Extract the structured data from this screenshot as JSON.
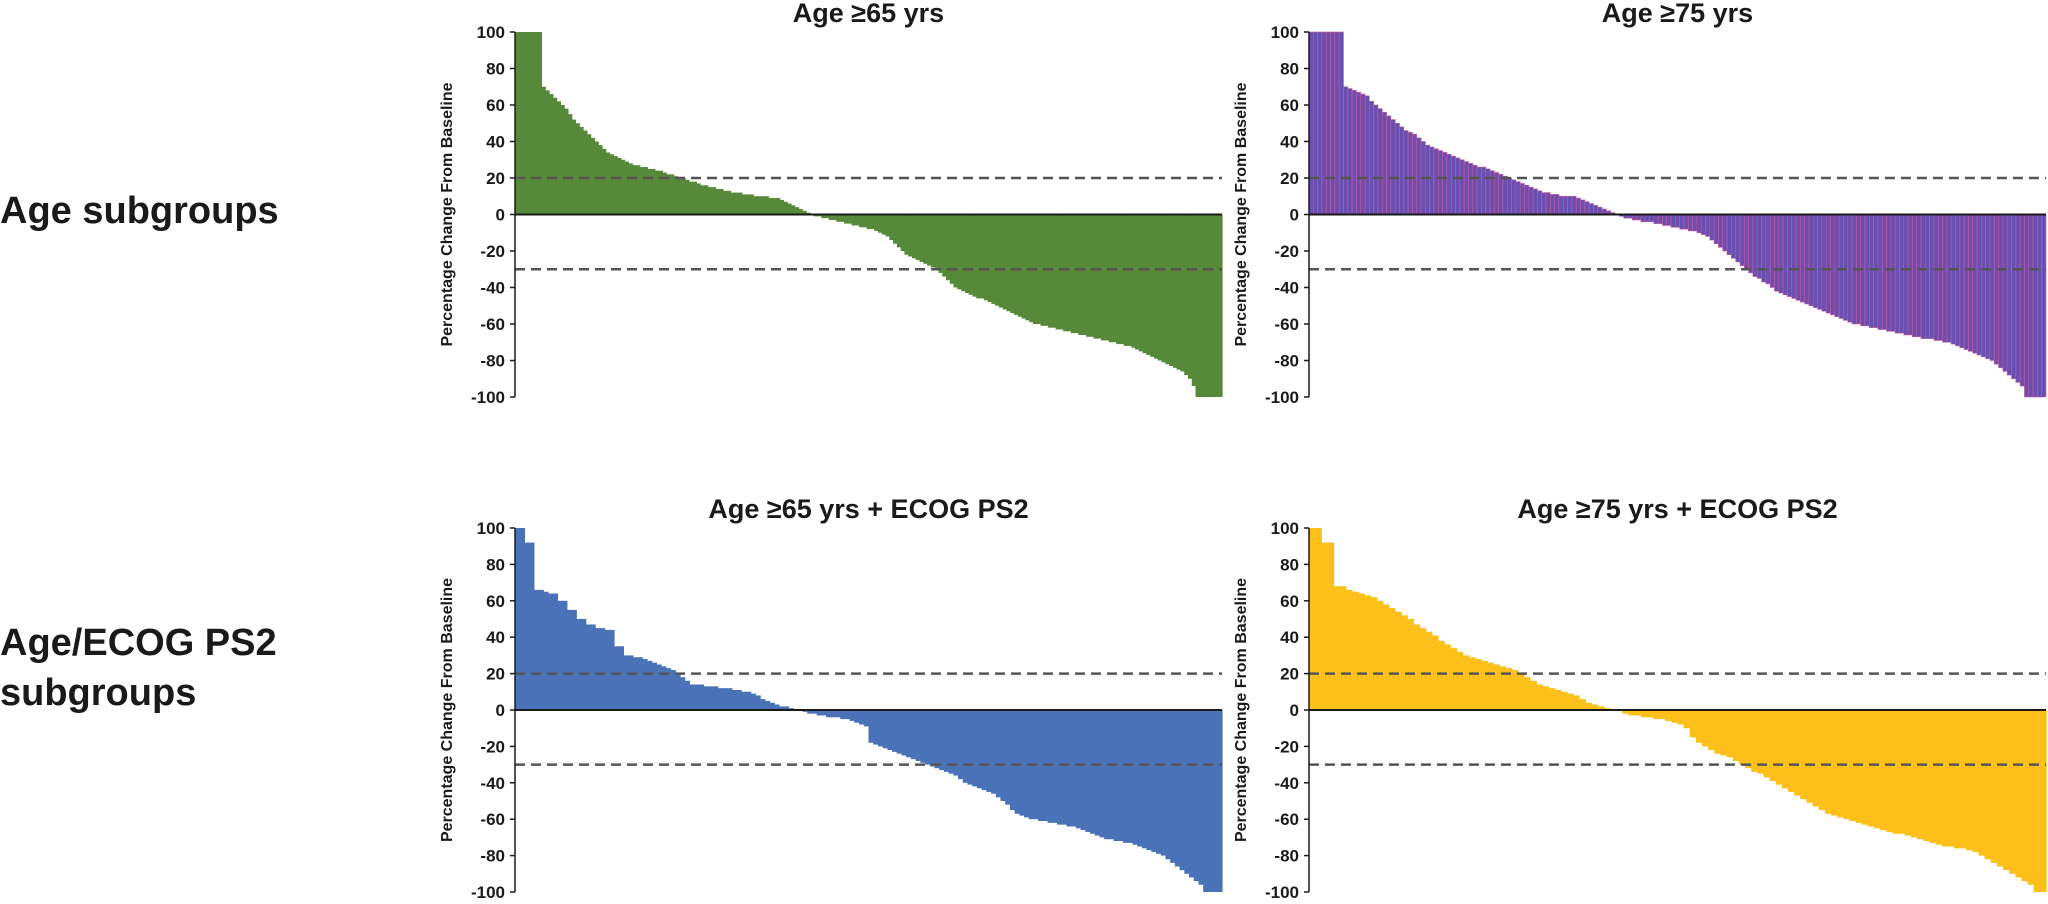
{
  "row_labels": [
    "Age subgroups",
    "Age/ECOG PS2\nsubgroups"
  ],
  "chart_data": [
    {
      "type": "bar",
      "style": "waterfall",
      "title": "Age ≥65 yrs",
      "ylabel": "Percentage Change From Baseline",
      "ylim": [
        -100,
        100
      ],
      "yticks": [
        100,
        80,
        60,
        40,
        20,
        0,
        -20,
        -40,
        -60,
        -80,
        -100
      ],
      "reference_lines": [
        20,
        -30
      ],
      "color": "#56893a",
      "bar_borders": false,
      "values": [
        100,
        100,
        100,
        100,
        100,
        100,
        100,
        70,
        68,
        66,
        64,
        62,
        60,
        58,
        55,
        52,
        50,
        48,
        46,
        44,
        42,
        40,
        38,
        36,
        34,
        33,
        32,
        31,
        30,
        29,
        28,
        27,
        27,
        26,
        26,
        25,
        25,
        24,
        24,
        23,
        22,
        22,
        21,
        20,
        20,
        19,
        18,
        18,
        17,
        16,
        16,
        15,
        15,
        14,
        14,
        13,
        13,
        12,
        12,
        12,
        11,
        11,
        11,
        10,
        10,
        10,
        10,
        9,
        9,
        9,
        8,
        7,
        6,
        5,
        4,
        3,
        2,
        1,
        0,
        -1,
        -1,
        -2,
        -2,
        -3,
        -3,
        -4,
        -4,
        -5,
        -5,
        -6,
        -6,
        -7,
        -7,
        -8,
        -8,
        -9,
        -10,
        -11,
        -12,
        -14,
        -16,
        -18,
        -20,
        -22,
        -23,
        -24,
        -25,
        -26,
        -27,
        -28,
        -29,
        -30,
        -32,
        -34,
        -36,
        -38,
        -40,
        -41,
        -42,
        -43,
        -44,
        -45,
        -46,
        -46,
        -47,
        -48,
        -49,
        -50,
        -51,
        -52,
        -53,
        -54,
        -55,
        -56,
        -57,
        -58,
        -59,
        -60,
        -60,
        -61,
        -61,
        -62,
        -62,
        -63,
        -63,
        -64,
        -64,
        -65,
        -65,
        -66,
        -66,
        -67,
        -67,
        -68,
        -68,
        -69,
        -69,
        -70,
        -70,
        -71,
        -71,
        -72,
        -72,
        -73,
        -74,
        -75,
        -76,
        -77,
        -78,
        -79,
        -80,
        -81,
        -82,
        -83,
        -84,
        -85,
        -86,
        -88,
        -90,
        -94,
        -100,
        -100,
        -100,
        -100,
        -100,
        -100,
        -100
      ]
    },
    {
      "type": "bar",
      "style": "waterfall",
      "title": "Age ≥75 yrs",
      "ylabel": "Percentage Change From Baseline",
      "ylim": [
        -100,
        100
      ],
      "yticks": [
        100,
        80,
        60,
        40,
        20,
        0,
        -20,
        -40,
        -60,
        -80,
        -100
      ],
      "reference_lines": [
        20,
        -30
      ],
      "color": "#6a4fb0",
      "bar_borders": true,
      "values": [
        100,
        100,
        100,
        100,
        100,
        100,
        100,
        100,
        70,
        69,
        68,
        67,
        66,
        65,
        62,
        60,
        58,
        56,
        54,
        52,
        50,
        48,
        46,
        45,
        44,
        42,
        40,
        38,
        37,
        36,
        35,
        34,
        33,
        32,
        31,
        30,
        29,
        28,
        27,
        26,
        26,
        25,
        24,
        23,
        22,
        21,
        20,
        19,
        18,
        17,
        16,
        15,
        14,
        13,
        12,
        12,
        11,
        11,
        10,
        10,
        10,
        10,
        9,
        8,
        7,
        6,
        5,
        4,
        3,
        2,
        1,
        0,
        -1,
        -2,
        -2,
        -3,
        -3,
        -4,
        -4,
        -4,
        -5,
        -5,
        -6,
        -6,
        -7,
        -7,
        -8,
        -8,
        -9,
        -9,
        -10,
        -11,
        -12,
        -14,
        -16,
        -18,
        -20,
        -22,
        -24,
        -26,
        -28,
        -30,
        -32,
        -34,
        -35,
        -37,
        -38,
        -40,
        -42,
        -43,
        -44,
        -45,
        -46,
        -47,
        -48,
        -49,
        -50,
        -51,
        -52,
        -53,
        -54,
        -55,
        -56,
        -57,
        -58,
        -59,
        -60,
        -60,
        -61,
        -61,
        -62,
        -62,
        -63,
        -63,
        -64,
        -64,
        -65,
        -65,
        -66,
        -66,
        -67,
        -67,
        -68,
        -68,
        -68,
        -69,
        -69,
        -70,
        -70,
        -71,
        -72,
        -73,
        -74,
        -75,
        -76,
        -77,
        -78,
        -79,
        -80,
        -82,
        -84,
        -86,
        -88,
        -90,
        -92,
        -94,
        -100,
        -100,
        -100,
        -100,
        -100
      ]
    },
    {
      "type": "bar",
      "style": "waterfall",
      "title": "Age ≥65 yrs + ECOG PS2",
      "ylabel": "Percentage Change From Baseline",
      "ylim": [
        -100,
        100
      ],
      "yticks": [
        100,
        80,
        60,
        40,
        20,
        0,
        -20,
        -40,
        -60,
        -80,
        -100
      ],
      "reference_lines": [
        20,
        -30
      ],
      "color": "#4a72b8",
      "bar_borders": false,
      "values": [
        100,
        100,
        92,
        92,
        66,
        66,
        65,
        64,
        64,
        60,
        60,
        55,
        55,
        50,
        50,
        47,
        47,
        45,
        45,
        44,
        44,
        35,
        35,
        30,
        30,
        29,
        29,
        28,
        27,
        26,
        25,
        24,
        23,
        22,
        20,
        18,
        16,
        14,
        14,
        14,
        13,
        13,
        13,
        12,
        12,
        12,
        11,
        11,
        10,
        10,
        9,
        8,
        6,
        5,
        4,
        3,
        2,
        2,
        1,
        0,
        0,
        -1,
        -2,
        -2,
        -3,
        -3,
        -4,
        -4,
        -4,
        -5,
        -5,
        -6,
        -7,
        -8,
        -9,
        -18,
        -19,
        -20,
        -21,
        -22,
        -23,
        -24,
        -25,
        -26,
        -27,
        -28,
        -29,
        -30,
        -31,
        -32,
        -33,
        -34,
        -35,
        -36,
        -38,
        -40,
        -41,
        -42,
        -43,
        -44,
        -45,
        -46,
        -48,
        -50,
        -52,
        -55,
        -57,
        -58,
        -59,
        -60,
        -60,
        -61,
        -61,
        -62,
        -62,
        -63,
        -63,
        -64,
        -64,
        -65,
        -66,
        -67,
        -68,
        -69,
        -70,
        -71,
        -71,
        -72,
        -72,
        -73,
        -73,
        -74,
        -75,
        -76,
        -77,
        -78,
        -79,
        -80,
        -82,
        -84,
        -86,
        -88,
        -90,
        -92,
        -94,
        -96,
        -100,
        -100,
        -100,
        -100
      ]
    },
    {
      "type": "bar",
      "style": "waterfall",
      "title": "Age ≥75 yrs + ECOG PS2",
      "ylabel": "Percentage Change From Baseline",
      "ylim": [
        -100,
        100
      ],
      "yticks": [
        100,
        80,
        60,
        40,
        20,
        0,
        -20,
        -40,
        -60,
        -80,
        -100
      ],
      "reference_lines": [
        20,
        -30
      ],
      "color": "#fdbf1a",
      "bar_borders": false,
      "values": [
        100,
        100,
        92,
        92,
        68,
        68,
        66,
        65,
        64,
        63,
        62,
        60,
        58,
        56,
        54,
        52,
        50,
        47,
        45,
        43,
        41,
        38,
        36,
        34,
        32,
        30,
        29,
        28,
        27,
        26,
        25,
        24,
        23,
        22,
        20,
        18,
        16,
        14,
        13,
        12,
        11,
        10,
        9,
        8,
        6,
        4,
        3,
        2,
        1,
        0,
        0,
        -2,
        -3,
        -3,
        -4,
        -4,
        -5,
        -5,
        -6,
        -7,
        -8,
        -10,
        -15,
        -18,
        -20,
        -22,
        -24,
        -25,
        -26,
        -28,
        -30,
        -32,
        -34,
        -35,
        -37,
        -39,
        -41,
        -43,
        -45,
        -47,
        -49,
        -51,
        -53,
        -55,
        -57,
        -58,
        -59,
        -60,
        -61,
        -62,
        -63,
        -64,
        -65,
        -66,
        -67,
        -68,
        -68,
        -69,
        -70,
        -71,
        -72,
        -73,
        -74,
        -75,
        -75,
        -76,
        -76,
        -77,
        -78,
        -80,
        -82,
        -84,
        -86,
        -88,
        -90,
        -92,
        -94,
        -96,
        -100,
        -100
      ]
    }
  ]
}
